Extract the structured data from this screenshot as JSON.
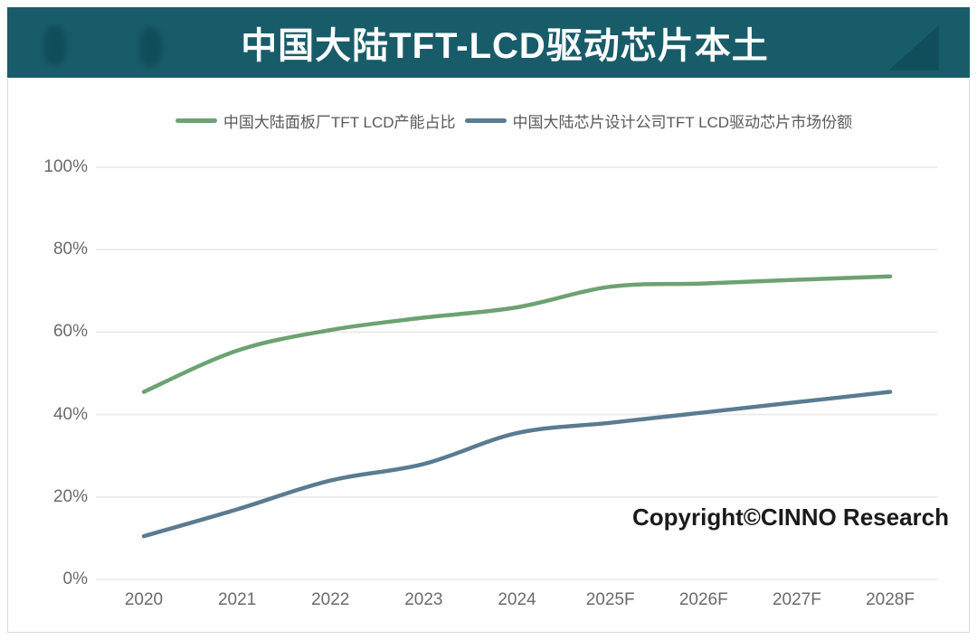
{
  "banner": {
    "title": "中国大陆TFT-LCD驱动芯片本土",
    "bg_color": "#185c69"
  },
  "watermark": "Copyright©CINNO Research",
  "colors": {
    "series_green": "#6da272",
    "series_blue": "#5a7b90",
    "grid": "#e9e9e9",
    "tick_text": "#6a6a6a"
  },
  "chart_data": {
    "type": "line",
    "categories": [
      "2020",
      "2021",
      "2022",
      "2023",
      "2024",
      "2025F",
      "2026F",
      "2027F",
      "2028F"
    ],
    "series": [
      {
        "name": "中国大陆面板厂TFT LCD产能占比",
        "color": "#6da272",
        "values": [
          45.5,
          55.5,
          60.5,
          63.5,
          66,
          71,
          71.8,
          72.7,
          73.5
        ]
      },
      {
        "name": "中国大陆芯片设计公司TFT LCD驱动芯片市场份额",
        "color": "#5a7b90",
        "values": [
          10.5,
          17,
          24,
          28,
          35.5,
          38,
          40.5,
          43,
          45.5
        ]
      }
    ],
    "title": "中国大陆TFT-LCD驱动芯片本土",
    "xlabel": "",
    "ylabel": "",
    "ylim": [
      0,
      100
    ],
    "yticks": [
      "0%",
      "20%",
      "40%",
      "60%",
      "80%",
      "100%"
    ],
    "ytick_values": [
      0,
      20,
      40,
      60,
      80,
      100
    ],
    "grid": true,
    "legend_position": "top",
    "annotations": [
      "Copyright©CINNO Research"
    ]
  }
}
